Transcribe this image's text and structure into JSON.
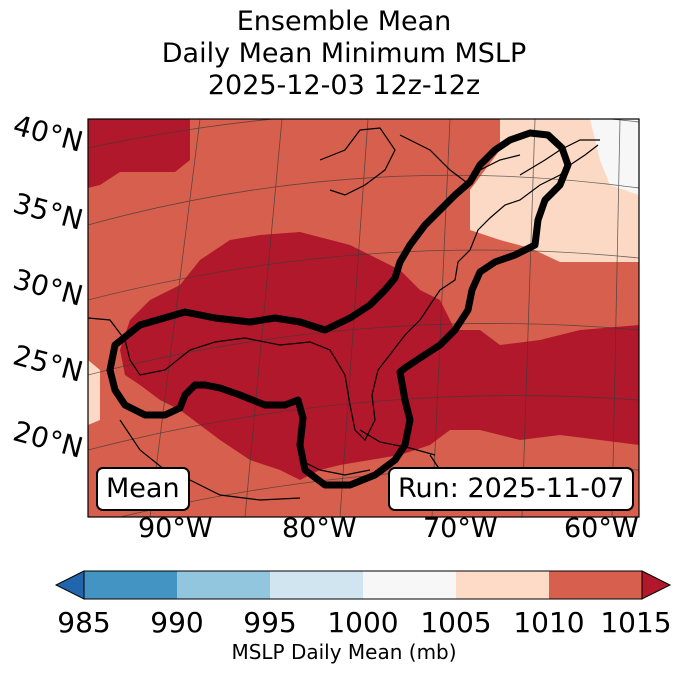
{
  "title": {
    "line1": "Ensemble Mean",
    "line2": "Daily Mean Minimum MSLP",
    "line3": "2025-12-03 12z-12z"
  },
  "map": {
    "lat_labels": [
      "40°N",
      "35°N",
      "30°N",
      "25°N",
      "20°N"
    ],
    "lon_labels": [
      "90°W",
      "80°W",
      "70°W",
      "60°W"
    ],
    "mean_label": "Mean",
    "run_label": "Run: 2025-11-07",
    "colors": {
      "lt1005": "#f7f7f7",
      "b1005_1010": "#fcd9c5",
      "b1010_1015": "#d6604d",
      "gt1015": "#b2182b",
      "outline": "#000000"
    }
  },
  "colorbar": {
    "ticks": [
      "985",
      "990",
      "995",
      "1000",
      "1005",
      "1010",
      "1015"
    ],
    "label": "MSLP Daily Mean (mb)",
    "colors": [
      "#2166ac",
      "#4393c3",
      "#92c5de",
      "#d1e5f0",
      "#f7f7f7",
      "#fddbc7",
      "#d6604d",
      "#b2182b"
    ]
  }
}
